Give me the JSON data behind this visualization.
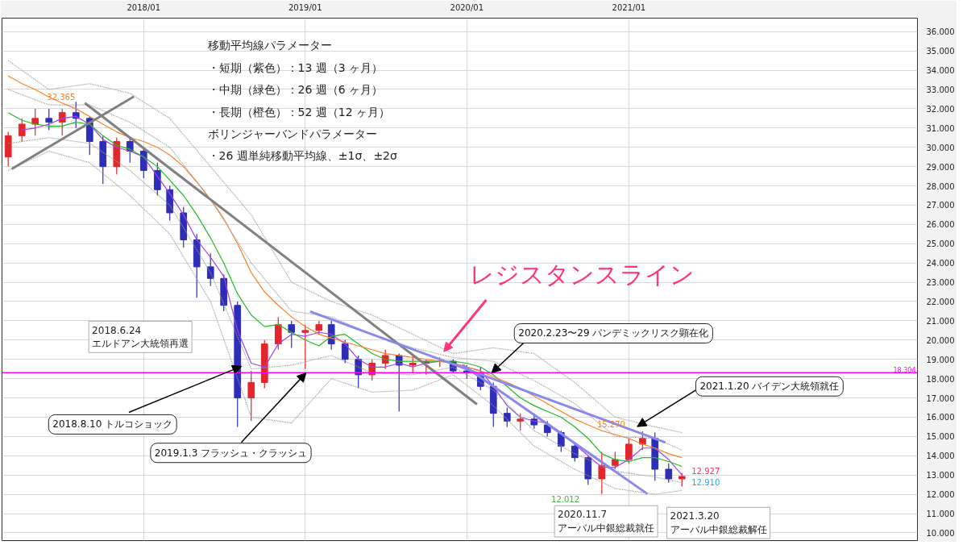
{
  "chart_data": {
    "type": "candlestick",
    "x": [
      "2017-03",
      "2017-04",
      "2017-05",
      "2017-06",
      "2017-07",
      "2017-08",
      "2017-09",
      "2017-10",
      "2017-11",
      "2017-12",
      "2018-01",
      "2018-02",
      "2018-03",
      "2018-04",
      "2018-05",
      "2018-06",
      "2018-07",
      "2018-08",
      "2018-09",
      "2018-10",
      "2018-11",
      "2018-12",
      "2019-01",
      "2019-02",
      "2019-03",
      "2019-04",
      "2019-05",
      "2019-06",
      "2019-07",
      "2019-08",
      "2019-09",
      "2019-10",
      "2019-11",
      "2019-12",
      "2020-01",
      "2020-02",
      "2020-03",
      "2020-04",
      "2020-05",
      "2020-06",
      "2020-07",
      "2020-08",
      "2020-09",
      "2020-10",
      "2020-11",
      "2020-12",
      "2021-01",
      "2021-02",
      "2021-03",
      "2021-04",
      "2021-05"
    ],
    "ohlc": [
      [
        29.5,
        30.8,
        29.0,
        30.6
      ],
      [
        30.6,
        31.5,
        30.3,
        31.2
      ],
      [
        31.2,
        32.0,
        30.6,
        31.5
      ],
      [
        31.5,
        32.0,
        30.9,
        31.3
      ],
      [
        31.3,
        32.0,
        30.6,
        31.8
      ],
      [
        31.8,
        32.365,
        31.0,
        31.5
      ],
      [
        31.5,
        31.6,
        29.6,
        30.3
      ],
      [
        30.3,
        30.6,
        28.1,
        29.0
      ],
      [
        29.0,
        30.5,
        28.6,
        30.3
      ],
      [
        30.3,
        30.5,
        29.2,
        29.8
      ],
      [
        29.8,
        30.0,
        28.4,
        28.8
      ],
      [
        28.8,
        29.2,
        27.5,
        27.8
      ],
      [
        27.8,
        28.0,
        26.2,
        26.6
      ],
      [
        26.6,
        26.9,
        24.8,
        25.2
      ],
      [
        25.2,
        25.5,
        22.2,
        23.8
      ],
      [
        23.8,
        24.5,
        22.8,
        23.2
      ],
      [
        23.2,
        23.4,
        21.5,
        21.8
      ],
      [
        21.8,
        22.0,
        15.5,
        17.0
      ],
      [
        17.0,
        18.4,
        15.8,
        17.8
      ],
      [
        17.8,
        20.0,
        17.5,
        19.8
      ],
      [
        19.8,
        21.2,
        19.5,
        20.8
      ],
      [
        20.8,
        21.0,
        19.6,
        20.4
      ],
      [
        20.4,
        20.8,
        18.5,
        20.5
      ],
      [
        20.5,
        21.0,
        20.3,
        20.8
      ],
      [
        20.8,
        21.0,
        19.5,
        19.8
      ],
      [
        19.8,
        20.0,
        18.8,
        19.0
      ],
      [
        19.0,
        19.2,
        17.5,
        18.2
      ],
      [
        18.2,
        19.0,
        17.9,
        18.8
      ],
      [
        18.8,
        19.5,
        18.5,
        19.2
      ],
      [
        19.2,
        19.3,
        16.3,
        18.7
      ],
      [
        18.7,
        19.2,
        18.3,
        18.8
      ],
      [
        18.8,
        19.0,
        18.2,
        18.9
      ],
      [
        18.9,
        19.1,
        18.6,
        18.9
      ],
      [
        18.9,
        19.0,
        18.3,
        18.4
      ],
      [
        18.4,
        18.7,
        18.0,
        18.3
      ],
      [
        18.3,
        18.6,
        17.4,
        17.6
      ],
      [
        17.6,
        17.8,
        15.5,
        16.2
      ],
      [
        16.2,
        16.5,
        15.5,
        15.8
      ],
      [
        15.8,
        16.2,
        15.3,
        15.9
      ],
      [
        15.9,
        16.2,
        15.4,
        15.6
      ],
      [
        15.6,
        15.8,
        15.0,
        15.2
      ],
      [
        15.2,
        15.3,
        14.2,
        14.5
      ],
      [
        14.5,
        14.6,
        13.7,
        13.9
      ],
      [
        13.9,
        14.0,
        12.5,
        12.8
      ],
      [
        12.8,
        14.2,
        12.012,
        13.5
      ],
      [
        13.5,
        14.2,
        13.3,
        13.8
      ],
      [
        13.8,
        14.9,
        13.6,
        14.6
      ],
      [
        14.6,
        15.27,
        14.3,
        14.9
      ],
      [
        14.9,
        15.2,
        12.7,
        13.3
      ],
      [
        13.3,
        13.6,
        12.6,
        12.8
      ],
      [
        12.8,
        13.1,
        12.4,
        12.927
      ]
    ],
    "series": [
      {
        "type": "line",
        "color": "#a040f0",
        "x": [
          "2017-04",
          "2017-05",
          "2017-06",
          "2017-07",
          "2017-08",
          "2017-09",
          "2017-10",
          "2017-11",
          "2017-12",
          "2018-01",
          "2018-02",
          "2018-03",
          "2018-04",
          "2018-05",
          "2018-06",
          "2018-07",
          "2018-08",
          "2018-09",
          "2018-10",
          "2018-11",
          "2018-12",
          "2019-01",
          "2019-02",
          "2019-03",
          "2019-04",
          "2019-05",
          "2019-06",
          "2019-07",
          "2019-08",
          "2019-09",
          "2019-10",
          "2019-11",
          "2019-12",
          "2020-01",
          "2020-02",
          "2020-03",
          "2020-04",
          "2020-05",
          "2020-06",
          "2020-07",
          "2020-08",
          "2020-09",
          "2020-10",
          "2020-11",
          "2020-12",
          "2021-01",
          "2021-02",
          "2021-03",
          "2021-04",
          "2021-05"
        ],
        "values": [
          30.9,
          31.0,
          31.2,
          31.5,
          31.6,
          31.2,
          30.4,
          30.0,
          29.8,
          29.5,
          28.5,
          27.6,
          26.5,
          25.2,
          24.3,
          23.3,
          20.5,
          18.8,
          18.6,
          19.8,
          20.3,
          20.2,
          20.4,
          20.3,
          19.8,
          19.0,
          18.6,
          18.6,
          18.8,
          18.6,
          18.8,
          18.9,
          18.8,
          18.6,
          18.4,
          17.6,
          16.6,
          16.0,
          15.8,
          15.7,
          15.2,
          14.6,
          14.0,
          13.4,
          13.4,
          13.8,
          14.4,
          14.4,
          13.8,
          13.0
        ]
      },
      {
        "type": "line",
        "color": "#22bb22",
        "x": [
          "2017-03",
          "2017-04",
          "2017-05",
          "2017-06",
          "2017-07",
          "2017-08",
          "2017-09",
          "2017-10",
          "2017-11",
          "2017-12",
          "2018-01",
          "2018-02",
          "2018-03",
          "2018-04",
          "2018-05",
          "2018-06",
          "2018-07",
          "2018-08",
          "2018-09",
          "2018-10",
          "2018-11",
          "2018-12",
          "2019-01",
          "2019-02",
          "2019-03",
          "2019-04",
          "2019-05",
          "2019-06",
          "2019-07",
          "2019-08",
          "2019-09",
          "2019-10",
          "2019-11",
          "2019-12",
          "2020-01",
          "2020-02",
          "2020-03",
          "2020-04",
          "2020-05",
          "2020-06",
          "2020-07",
          "2020-08",
          "2020-09",
          "2020-10",
          "2020-11",
          "2020-12",
          "2021-01",
          "2021-02",
          "2021-03",
          "2021-04",
          "2021-05"
        ],
        "values": [
          31.8,
          31.4,
          31.2,
          31.1,
          31.1,
          31.3,
          31.2,
          30.6,
          30.1,
          29.9,
          29.5,
          29.0,
          28.3,
          27.5,
          26.5,
          25.3,
          24.0,
          22.4,
          21.3,
          20.7,
          20.8,
          20.4,
          20.0,
          19.7,
          20.2,
          20.3,
          19.8,
          19.3,
          19.0,
          18.9,
          18.9,
          18.9,
          18.9,
          18.9,
          18.8,
          18.6,
          18.2,
          17.6,
          17.0,
          16.6,
          16.3,
          16.0,
          15.5,
          14.9,
          14.1,
          13.8,
          13.7,
          13.9,
          13.9,
          13.7,
          13.45
        ]
      },
      {
        "type": "line",
        "color": "#ff7f27",
        "x": [
          "2017-03",
          "2017-04",
          "2017-05",
          "2017-06",
          "2017-07",
          "2017-08",
          "2017-09",
          "2017-10",
          "2017-11",
          "2017-12",
          "2018-01",
          "2018-02",
          "2018-03",
          "2018-04",
          "2018-05",
          "2018-06",
          "2018-07",
          "2018-08",
          "2018-09",
          "2018-10",
          "2018-11",
          "2018-12",
          "2019-01",
          "2019-02",
          "2019-03",
          "2019-04",
          "2019-05",
          "2019-06",
          "2019-07",
          "2019-08",
          "2019-09",
          "2019-10",
          "2019-11",
          "2019-12",
          "2020-01",
          "2020-02",
          "2020-03",
          "2020-04",
          "2020-05",
          "2020-06",
          "2020-07",
          "2020-08",
          "2020-09",
          "2020-10",
          "2020-11",
          "2020-12",
          "2021-01",
          "2021-02",
          "2021-03",
          "2021-04",
          "2021-05"
        ],
        "values": [
          33.7,
          33.3,
          33.0,
          32.6,
          32.3,
          32.0,
          31.6,
          31.2,
          30.8,
          30.5,
          30.3,
          30.0,
          29.6,
          29.0,
          28.2,
          27.3,
          26.3,
          25.0,
          23.5,
          22.5,
          21.8,
          21.2,
          20.7,
          20.3,
          20.1,
          19.9,
          19.7,
          19.5,
          19.3,
          19.2,
          19.1,
          19.0,
          18.9,
          18.8,
          18.6,
          18.4,
          18.1,
          17.8,
          17.5,
          17.1,
          16.7,
          16.3,
          15.9,
          15.6,
          15.3,
          15.1,
          14.9,
          14.6,
          14.4,
          14.1,
          13.9
        ]
      },
      {
        "type": "line",
        "color": "#999999",
        "line_style": "dotted",
        "x": [
          "2017-03",
          "2017-06",
          "2017-09",
          "2017-12",
          "2018-03",
          "2018-06",
          "2018-09",
          "2018-12",
          "2019-03",
          "2019-06",
          "2019-09",
          "2019-12",
          "2020-03",
          "2020-06",
          "2020-09",
          "2020-12",
          "2021-03",
          "2021-05"
        ],
        "values": [
          34.5,
          33.0,
          33.3,
          32.8,
          31.5,
          29.0,
          26.5,
          23.0,
          22.0,
          21.3,
          20.3,
          19.3,
          19.6,
          19.3,
          17.8,
          16.0,
          15.5,
          15.2
        ]
      },
      {
        "type": "line",
        "color": "#999999",
        "line_style": "dotted",
        "x": [
          "2017-03",
          "2017-06",
          "2017-09",
          "2017-12",
          "2018-03",
          "2018-06",
          "2018-09",
          "2018-12",
          "2019-03",
          "2019-06",
          "2019-09",
          "2019-12",
          "2020-03",
          "2020-06",
          "2020-09",
          "2020-12",
          "2021-03",
          "2021-05"
        ],
        "values": [
          33.0,
          32.2,
          32.2,
          31.3,
          30.0,
          27.3,
          24.0,
          21.5,
          21.2,
          20.3,
          19.6,
          19.1,
          18.9,
          17.9,
          16.7,
          15.0,
          14.9,
          14.3
        ]
      },
      {
        "type": "line",
        "color": "#999999",
        "line_style": "dotted",
        "x": [
          "2017-03",
          "2017-06",
          "2017-09",
          "2017-12",
          "2018-03",
          "2018-06",
          "2018-09",
          "2018-12",
          "2019-03",
          "2019-06",
          "2019-09",
          "2019-12",
          "2020-03",
          "2020-06",
          "2020-09",
          "2020-12",
          "2021-03",
          "2021-05"
        ],
        "values": [
          30.2,
          30.5,
          30.2,
          28.8,
          27.0,
          23.5,
          18.5,
          18.7,
          19.2,
          18.3,
          18.2,
          18.6,
          17.4,
          15.3,
          14.1,
          13.2,
          12.9,
          12.6
        ]
      },
      {
        "type": "line",
        "color": "#999999",
        "line_style": "dotted",
        "x": [
          "2017-03",
          "2017-06",
          "2017-09",
          "2017-12",
          "2018-03",
          "2018-06",
          "2018-09",
          "2018-12",
          "2019-03",
          "2019-06",
          "2019-09",
          "2019-12",
          "2020-03",
          "2020-06",
          "2020-09",
          "2020-12",
          "2021-03",
          "2021-05"
        ],
        "values": [
          28.8,
          29.8,
          29.2,
          27.5,
          25.5,
          22.0,
          16.0,
          15.7,
          18.0,
          17.3,
          17.4,
          18.2,
          16.6,
          14.5,
          13.3,
          12.3,
          12.0,
          12.2
        ]
      },
      {
        "type": "line",
        "color": "#808080",
        "x": [
          "2017-03-09",
          "2017-12-10"
        ],
        "values": [
          28.88,
          32.63
        ]
      },
      {
        "type": "line",
        "color": "#808080",
        "x": [
          "2017-08-21",
          "2020-01-24"
        ],
        "values": [
          32.3,
          16.67
        ]
      },
      {
        "type": "line",
        "color": "#8888ee",
        "x": [
          "2019-01-12",
          "2021-03-25"
        ],
        "values": [
          21.48,
          14.69
        ]
      },
      {
        "type": "line",
        "color": "#8888ee",
        "x": [
          "2019-12-22",
          "2021-02-12"
        ],
        "values": [
          18.72,
          12.02
        ]
      }
    ],
    "xlim": [
      "2017-02-15",
      "2022-10-15"
    ],
    "xticks": [
      {
        "value": "2018-01-01",
        "label": "2018/01"
      },
      {
        "value": "2019-01-01",
        "label": "2019/01"
      },
      {
        "value": "2020-01-01",
        "label": "2020/01"
      },
      {
        "value": "2021-01-01",
        "label": "2021/01"
      }
    ],
    "ylim": [
      9.6,
      36.7
    ],
    "yticks": [
      {
        "value": 10,
        "label": "10.000"
      },
      {
        "value": 11,
        "label": "11.000"
      },
      {
        "value": 12,
        "label": "12.000"
      },
      {
        "value": 13,
        "label": "13.000"
      },
      {
        "value": 14,
        "label": "14.000"
      },
      {
        "value": 15,
        "label": "15.000"
      },
      {
        "value": 16,
        "label": "16.000"
      },
      {
        "value": 17,
        "label": "17.000"
      },
      {
        "value": 18,
        "label": "18.000"
      },
      {
        "value": 19,
        "label": "19.000"
      },
      {
        "value": 20,
        "label": "20.000"
      },
      {
        "value": 21,
        "label": "21.000"
      },
      {
        "value": 22,
        "label": "22.000"
      },
      {
        "value": 23,
        "label": "23.000"
      },
      {
        "value": 24,
        "label": "24.000"
      },
      {
        "value": 25,
        "label": "25.000"
      },
      {
        "value": 26,
        "label": "26.000"
      },
      {
        "value": 27,
        "label": "27.000"
      },
      {
        "value": 28,
        "label": "28.000"
      },
      {
        "value": 29,
        "label": "29.000"
      },
      {
        "value": 30,
        "label": "30.000"
      },
      {
        "value": 31,
        "label": "31.000"
      },
      {
        "value": 32,
        "label": "32.000"
      },
      {
        "value": 33,
        "label": "33.000"
      },
      {
        "value": 34,
        "label": "34.000"
      },
      {
        "value": 35,
        "label": "35.000"
      },
      {
        "value": 36,
        "label": "36.000"
      }
    ],
    "grid": true,
    "ref_lines": [
      {
        "axis": "y",
        "value": 18.304,
        "label": "18.304",
        "color": "#ff00ff"
      }
    ],
    "annotations": [
      "移動平均線パラメーター",
      "・短期（紫色）：13 週（3 ヶ月）",
      "・中期（緑色）：26 週（6 ヶ月）",
      "・長期（橙色）：52 週（12 ヶ月）",
      "ボリンジャーバンドパラメーター",
      "・26 週単純移動平均線、±1σ、±2σ",
      "2018.6.24\nエルドアン大統領再選",
      "2020.11.7\nアーバル中銀総裁就任",
      "2021.3.20\nアーバル中銀総裁解任",
      {
        "text": "レジスタンスライン",
        "x": "2019-11-10",
        "y": 19.4
      },
      {
        "text": "2018.8.10 トルコショック",
        "x": "2018-08-10",
        "y": 18.64
      },
      {
        "text": "2019.1.3 フラッシュ・クラッシュ",
        "x": "2019-01-03",
        "y": 18.304
      },
      {
        "text": "2020.2.23〜29 パンデミックリスク顕在化",
        "x": "2020-02-26",
        "y": 18.3
      },
      {
        "text": "2021.1.20 バイデン大統領就任",
        "x": "2021-01-20",
        "y": 15.51
      },
      {
        "text": "32.365",
        "x": "2017-08",
        "y": 32.365
      },
      {
        "text": "12.012",
        "x": "2020-11",
        "y": 12.012
      },
      {
        "text": "15.270",
        "x": "2021-02",
        "y": 15.27
      },
      {
        "text": "12.927",
        "x": "2021-05",
        "y": 12.927
      },
      {
        "text": "12.910",
        "x": "2021-05",
        "y": 12.91
      }
    ]
  }
}
